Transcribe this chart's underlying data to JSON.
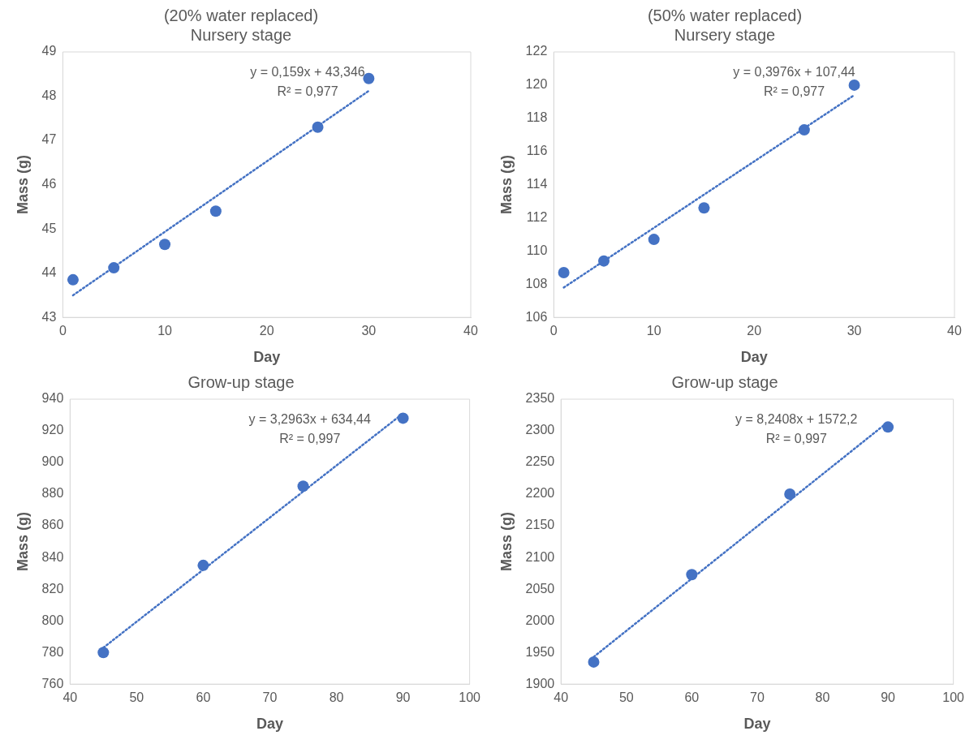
{
  "chart_data": [
    {
      "type": "scatter",
      "title": "(20% water replaced)",
      "subtitle": "Nursery stage",
      "xlabel": "Day",
      "ylabel": "Mass (g)",
      "xlim": [
        0,
        40
      ],
      "xticks": [
        0,
        10,
        20,
        30,
        40
      ],
      "ylim": [
        43,
        49
      ],
      "yticks": [
        43,
        44,
        45,
        46,
        47,
        48,
        49
      ],
      "annotations": [
        "y = 0,159x + 43,346",
        "R² = 0,977"
      ],
      "series": [
        {
          "type": "scatter",
          "color": "#4472c4",
          "marker": "circle",
          "x": [
            1,
            5,
            10,
            15,
            25,
            30
          ],
          "values": [
            43.85,
            44.12,
            44.65,
            45.4,
            47.3,
            48.4
          ]
        },
        {
          "type": "line",
          "color": "#4472c4",
          "marker": "none",
          "line_style": "dotted",
          "x": [
            1,
            30
          ],
          "values": [
            43.5,
            48.12
          ]
        }
      ]
    },
    {
      "type": "scatter",
      "title": "(50% water replaced)",
      "subtitle": "Nursery stage",
      "xlabel": "Day",
      "ylabel": "Mass (g)",
      "xlim": [
        0,
        40
      ],
      "xticks": [
        0,
        10,
        20,
        30,
        40
      ],
      "ylim": [
        106,
        122
      ],
      "yticks": [
        106,
        108,
        110,
        112,
        114,
        116,
        118,
        120,
        122
      ],
      "annotations": [
        "y = 0,3976x + 107,44",
        "R² = 0,977"
      ],
      "series": [
        {
          "type": "scatter",
          "color": "#4472c4",
          "marker": "circle",
          "x": [
            1,
            5,
            10,
            15,
            25,
            30
          ],
          "values": [
            108.7,
            109.4,
            110.7,
            112.6,
            117.3,
            120.0
          ]
        },
        {
          "type": "line",
          "color": "#4472c4",
          "marker": "none",
          "line_style": "dotted",
          "x": [
            1,
            30
          ],
          "values": [
            107.8,
            119.4
          ]
        }
      ]
    },
    {
      "type": "scatter",
      "title": "Grow-up stage",
      "xlabel": "Day",
      "ylabel": "Mass (g)",
      "xlim": [
        40,
        100
      ],
      "xticks": [
        40,
        50,
        60,
        70,
        80,
        90,
        100
      ],
      "ylim": [
        760,
        940
      ],
      "yticks": [
        760,
        780,
        800,
        820,
        840,
        860,
        880,
        900,
        920,
        940
      ],
      "annotations": [
        "y = 3,2963x + 634,44",
        "R² = 0,997"
      ],
      "series": [
        {
          "type": "scatter",
          "color": "#4472c4",
          "marker": "circle",
          "x": [
            45,
            60,
            75,
            90
          ],
          "values": [
            780,
            835,
            885,
            928
          ]
        },
        {
          "type": "line",
          "color": "#4472c4",
          "marker": "none",
          "line_style": "dotted",
          "x": [
            45,
            90
          ],
          "values": [
            783,
            931
          ]
        }
      ]
    },
    {
      "type": "scatter",
      "title": "Grow-up stage",
      "xlabel": "Day",
      "ylabel": "Mass (g)",
      "xlim": [
        40,
        100
      ],
      "xticks": [
        40,
        50,
        60,
        70,
        80,
        90,
        100
      ],
      "ylim": [
        1900,
        2350
      ],
      "yticks": [
        1900,
        1950,
        2000,
        2050,
        2100,
        2150,
        2200,
        2250,
        2300,
        2350
      ],
      "annotations": [
        "y = 8,2408x + 1572,2",
        "R² = 0,997"
      ],
      "series": [
        {
          "type": "scatter",
          "color": "#4472c4",
          "marker": "circle",
          "x": [
            45,
            60,
            75,
            90
          ],
          "values": [
            1935,
            2073,
            2200,
            2306
          ]
        },
        {
          "type": "line",
          "color": "#4472c4",
          "marker": "none",
          "line_style": "dotted",
          "x": [
            45,
            90
          ],
          "values": [
            1943,
            2314
          ]
        }
      ]
    }
  ]
}
